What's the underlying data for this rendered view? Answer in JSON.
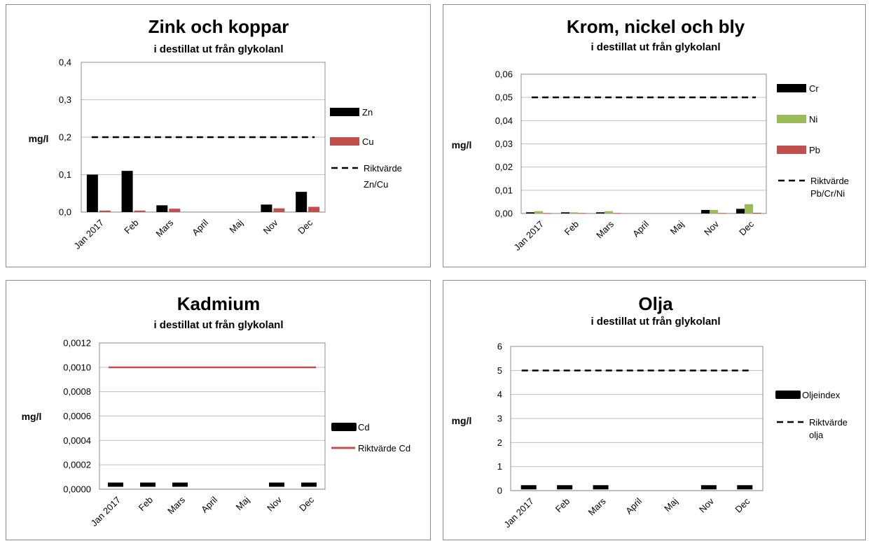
{
  "chart_data": [
    {
      "type": "bar",
      "title": "Zink och koppar",
      "subtitle": "i destillat ut från glykolanl",
      "ylabel": "mg/l",
      "categories": [
        "Jan 2017",
        "Feb",
        "Mars",
        "April",
        "Maj",
        "Nov",
        "Dec"
      ],
      "ylim": [
        0,
        0.4
      ],
      "yticks": [
        "0,0",
        "0,1",
        "0,2",
        "0,3",
        "0,4"
      ],
      "series": [
        {
          "name": "Zn",
          "color": "#000000",
          "values": [
            0.1,
            0.11,
            0.018,
            null,
            null,
            0.02,
            0.054
          ]
        },
        {
          "name": "Cu",
          "color": "#c0504d",
          "values": [
            0.004,
            0.004,
            0.009,
            null,
            null,
            0.01,
            0.014
          ]
        }
      ],
      "reference": {
        "name": "Riktvärde Zn/Cu",
        "value": 0.2,
        "style": "dashed",
        "color": "#000000"
      },
      "legend": {
        "position": "right",
        "items": [
          "Zn",
          "Cu",
          "Riktvärde",
          "Zn/Cu"
        ]
      },
      "grid": true
    },
    {
      "type": "bar",
      "title": "Krom, nickel och bly",
      "subtitle": "i destillat ut från glykolanl",
      "ylabel": "mg/l",
      "categories": [
        "Jan 2017",
        "Feb",
        "Mars",
        "April",
        "Maj",
        "Nov",
        "Dec"
      ],
      "ylim": [
        0,
        0.06
      ],
      "yticks": [
        "0,00",
        "0,01",
        "0,02",
        "0,03",
        "0,04",
        "0,05",
        "0,06"
      ],
      "series": [
        {
          "name": "Cr",
          "color": "#000000",
          "values": [
            0.0005,
            0.0005,
            0.0005,
            null,
            null,
            0.0015,
            0.002
          ]
        },
        {
          "name": "Ni",
          "color": "#9bbb59",
          "values": [
            0.001,
            0.0005,
            0.001,
            null,
            null,
            0.0015,
            0.004
          ]
        },
        {
          "name": "Pb",
          "color": "#c0504d",
          "values": [
            0.0002,
            0.0002,
            0.0002,
            null,
            null,
            0.0002,
            0.0003
          ]
        }
      ],
      "reference": {
        "name": "Riktvärde Pb/Cr/Ni",
        "value": 0.05,
        "style": "dashed",
        "color": "#000000"
      },
      "legend": {
        "position": "right",
        "items": [
          "Cr",
          "Ni",
          "Pb",
          "Riktvärde",
          "Pb/Cr/Ni"
        ]
      },
      "grid": true
    },
    {
      "type": "line",
      "title": "Kadmium",
      "subtitle": "i destillat ut från glykolanl",
      "ylabel": "mg/l",
      "categories": [
        "Jan 2017",
        "Feb",
        "Mars",
        "April",
        "Maj",
        "Nov",
        "Dec"
      ],
      "ylim": [
        0,
        0.0012
      ],
      "yticks": [
        "0,0000",
        "0,0002",
        "0,0004",
        "0,0006",
        "0,0008",
        "0,0010",
        "0,0012"
      ],
      "series": [
        {
          "name": "Cd",
          "color": "#000000",
          "values": [
            2e-05,
            2e-05,
            2e-05,
            null,
            null,
            2e-05,
            2e-05
          ]
        }
      ],
      "reference": {
        "name": "Riktvärde  Cd",
        "value": 0.001,
        "style": "solid",
        "color": "#c0504d"
      },
      "legend": {
        "position": "right",
        "items": [
          "Cd",
          "Riktvärde  Cd"
        ]
      },
      "grid": true
    },
    {
      "type": "line",
      "title": "Olja",
      "subtitle": "i destillat ut från glykolanl",
      "ylabel": "mg/l",
      "categories": [
        "Jan 2017",
        "Feb",
        "Mars",
        "April",
        "Maj",
        "Nov",
        "Dec"
      ],
      "ylim": [
        0,
        6
      ],
      "yticks": [
        "0",
        "1",
        "2",
        "3",
        "4",
        "5",
        "6"
      ],
      "series": [
        {
          "name": "Oljeindex",
          "color": "#000000",
          "values": [
            0.05,
            0.05,
            0.05,
            null,
            null,
            0.05,
            0.05
          ]
        }
      ],
      "reference": {
        "name": "Riktvärde olja",
        "value": 5,
        "style": "dashed",
        "color": "#000000"
      },
      "legend": {
        "position": "right",
        "items": [
          "Oljeindex",
          "Riktvärde",
          "olja"
        ]
      },
      "grid": true
    }
  ]
}
